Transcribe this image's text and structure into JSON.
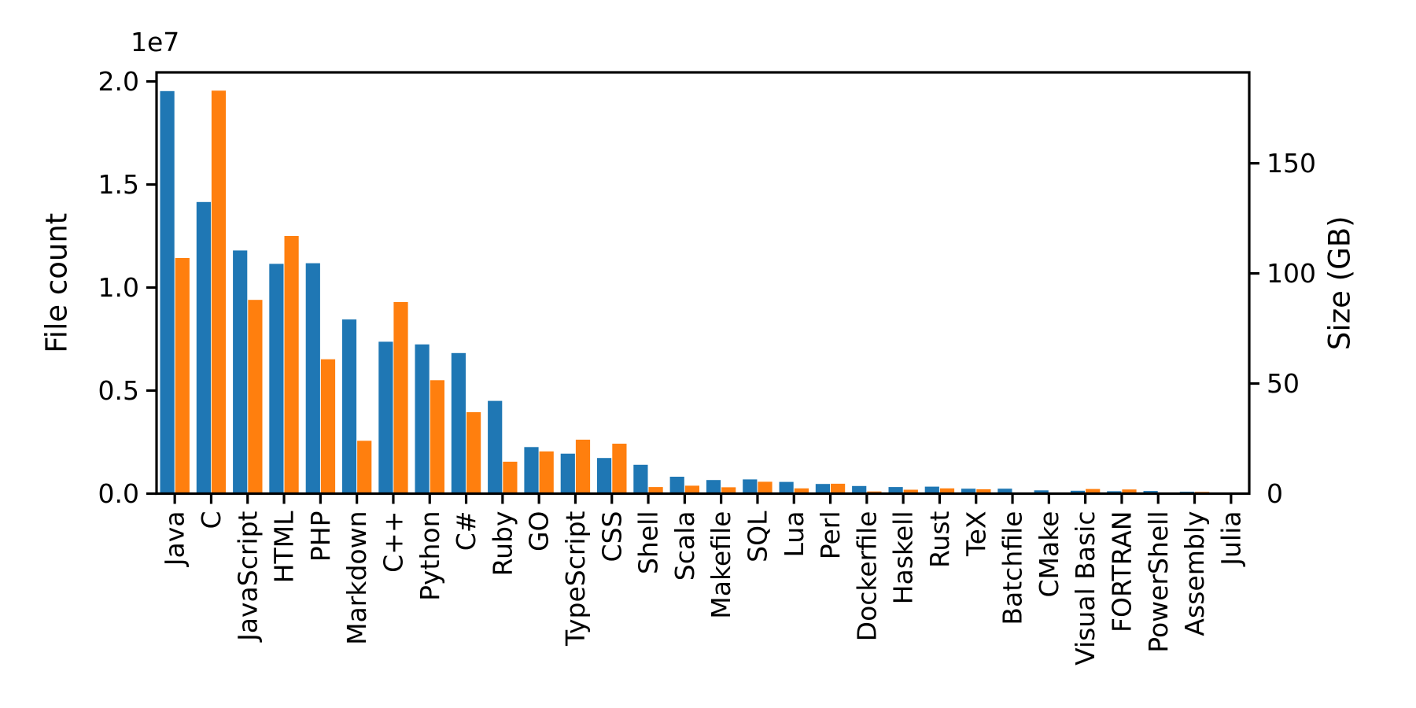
{
  "figure": {
    "background": "#ffffff",
    "kind": "matplotlib-dual-axis-bar-chart"
  },
  "chart_data": {
    "type": "bar",
    "title": "",
    "grid": false,
    "legend_position": "none",
    "categories": [
      "Java",
      "C",
      "JavaScript",
      "HTML",
      "PHP",
      "Markdown",
      "C++",
      "Python",
      "C#",
      "Ruby",
      "GO",
      "TypeScript",
      "CSS",
      "Shell",
      "Scala",
      "Makefile",
      "SQL",
      "Lua",
      "Perl",
      "Dockerfile",
      "Haskell",
      "Rust",
      "TeX",
      "Batchfile",
      "CMake",
      "Visual Basic",
      "FORTRAN",
      "PowerShell",
      "Assembly",
      "Julia"
    ],
    "series": [
      {
        "name": "File count",
        "axis": "left",
        "color": "#1f77b4",
        "values": [
          19530000,
          14150000,
          11800000,
          11150000,
          11180000,
          8450000,
          7370000,
          7240000,
          6820000,
          4500000,
          2260000,
          1940000,
          1730000,
          1400000,
          820000,
          660000,
          690000,
          570000,
          470000,
          370000,
          320000,
          340000,
          240000,
          240000,
          160000,
          140000,
          120000,
          130000,
          90000,
          50000
        ]
      },
      {
        "name": "Size (GB)",
        "axis": "right",
        "color": "#ff7f0e",
        "values": [
          107,
          183,
          88,
          117,
          61,
          24,
          87,
          51.5,
          37,
          14.5,
          19.2,
          24.5,
          22.7,
          3.0,
          3.6,
          2.9,
          5.4,
          2.4,
          4.5,
          1.0,
          1.8,
          2.4,
          2.0,
          0.4,
          0.4,
          2.1,
          1.9,
          0.4,
          0.8,
          0.3
        ]
      }
    ],
    "left_axis": {
      "label": "File count",
      "color": "#1f77b4",
      "offset_text": "1e7",
      "ticks": [
        0,
        5000000,
        10000000,
        15000000,
        20000000
      ],
      "tick_labels": [
        "0.0",
        "0.5",
        "1.0",
        "1.5",
        "2.0"
      ],
      "min": 0,
      "max": 20440000
    },
    "right_axis": {
      "label": "Size (GB)",
      "color": "#ff7f0e",
      "ticks": [
        0,
        50,
        100,
        150
      ],
      "tick_labels": [
        "0",
        "50",
        "100",
        "150"
      ],
      "min": 0,
      "max": 191.3
    },
    "x_axis": {
      "label": "",
      "tick_label_rotation_deg": 90
    }
  }
}
